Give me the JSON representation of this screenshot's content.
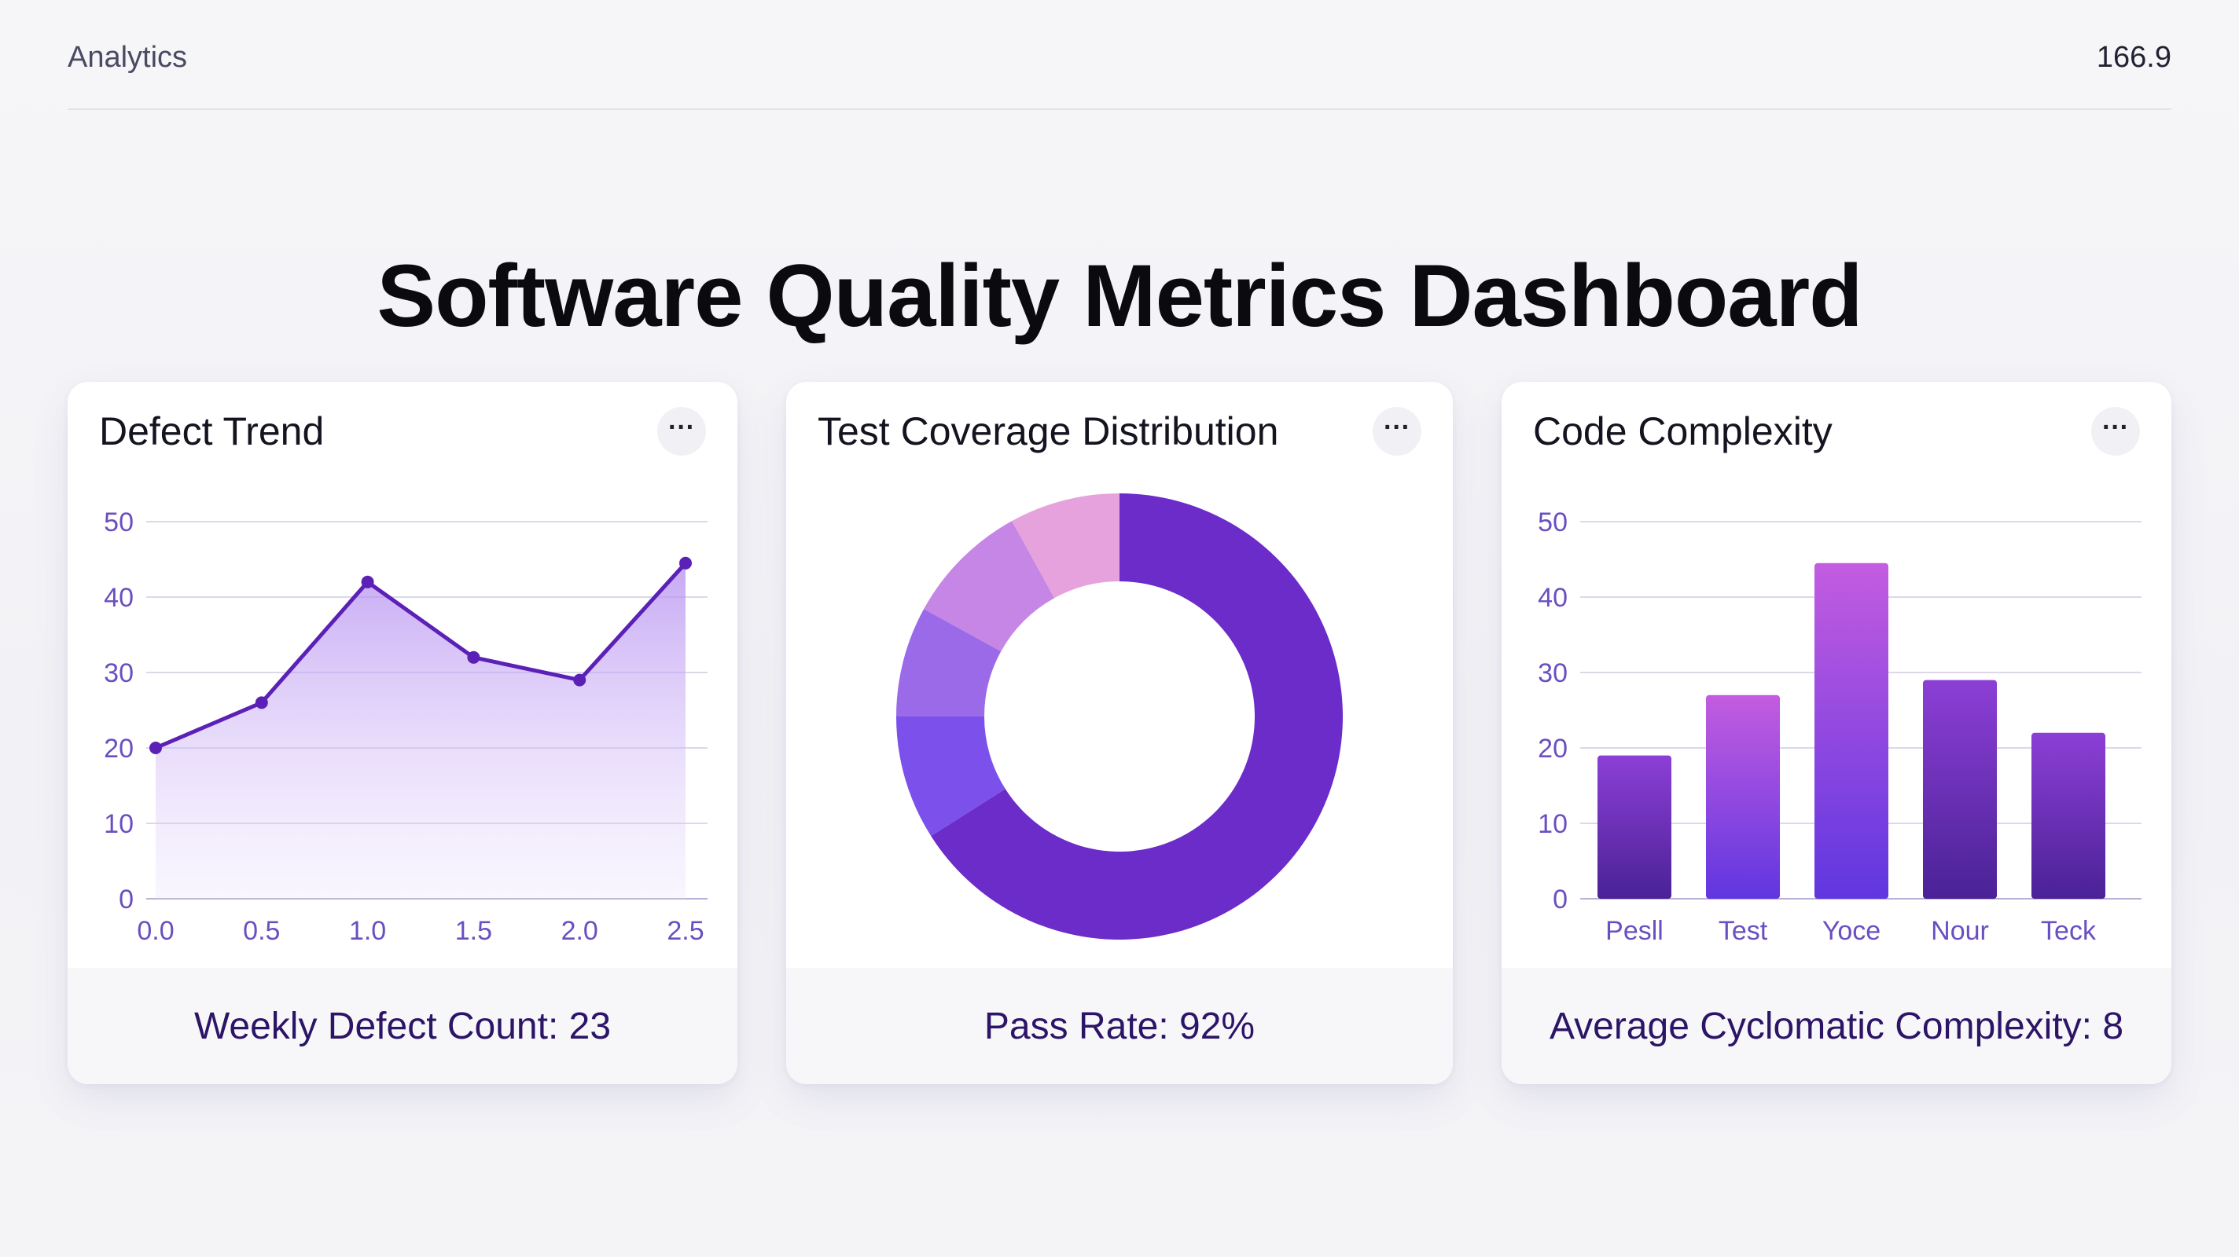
{
  "header": {
    "app_title": "Analytics",
    "top_value": "166.9"
  },
  "page_title": "Software Quality Metrics Dashboard",
  "colors": {
    "primary": "#5b21b6",
    "accent": "#7c3aed",
    "light_purple": "#c4a6f0",
    "pink": "#e9a0da"
  },
  "cards": {
    "defect_trend": {
      "title": "Defect Trend",
      "more_icon": "more-horizontal-icon",
      "footer": "Weekly Defect Count: 23"
    },
    "coverage": {
      "title": "Test Coverage Distribution",
      "more_icon": "more-horizontal-icon",
      "footer": "Pass Rate: 92%"
    },
    "complexity": {
      "title": "Code Complexity",
      "more_icon": "more-horizontal-icon",
      "footer": "Average Cyclomatic Complexity: 8"
    }
  },
  "chart_data": [
    {
      "id": "defect_trend",
      "type": "area",
      "title": "Defect Trend",
      "x": [
        0.0,
        0.5,
        1.0,
        1.5,
        2.0,
        2.5
      ],
      "y": [
        20,
        26,
        42,
        32,
        29,
        44.5
      ],
      "xticks": [
        "0.0",
        "0.5",
        "1.0",
        "1.5",
        "2.0",
        "2.5"
      ],
      "yticks": [
        "0",
        "10",
        "20",
        "30",
        "40",
        "50"
      ],
      "xlim": [
        0,
        2.5
      ],
      "ylim": [
        0,
        50
      ],
      "xlabel": "",
      "ylabel": "",
      "grid": true
    },
    {
      "id": "coverage",
      "type": "pie",
      "donut": true,
      "title": "Test Coverage Distribution",
      "slices": [
        {
          "value": 66,
          "color": "#6b2cc9"
        },
        {
          "value": 9,
          "color": "#7c50ea"
        },
        {
          "value": 8,
          "color": "#9a6ae8"
        },
        {
          "value": 9,
          "color": "#c586e6"
        },
        {
          "value": 8,
          "color": "#e6a2dc"
        }
      ]
    },
    {
      "id": "complexity",
      "type": "bar",
      "title": "Code Complexity",
      "categories": [
        "Pesll",
        "Test",
        "Yoce",
        "Nour",
        "Teck"
      ],
      "values": [
        19,
        27,
        44.5,
        29,
        22
      ],
      "yticks": [
        "0",
        "10",
        "20",
        "30",
        "40",
        "50"
      ],
      "ylim": [
        0,
        50
      ],
      "xlabel": "",
      "ylabel": "",
      "grid": true
    }
  ]
}
